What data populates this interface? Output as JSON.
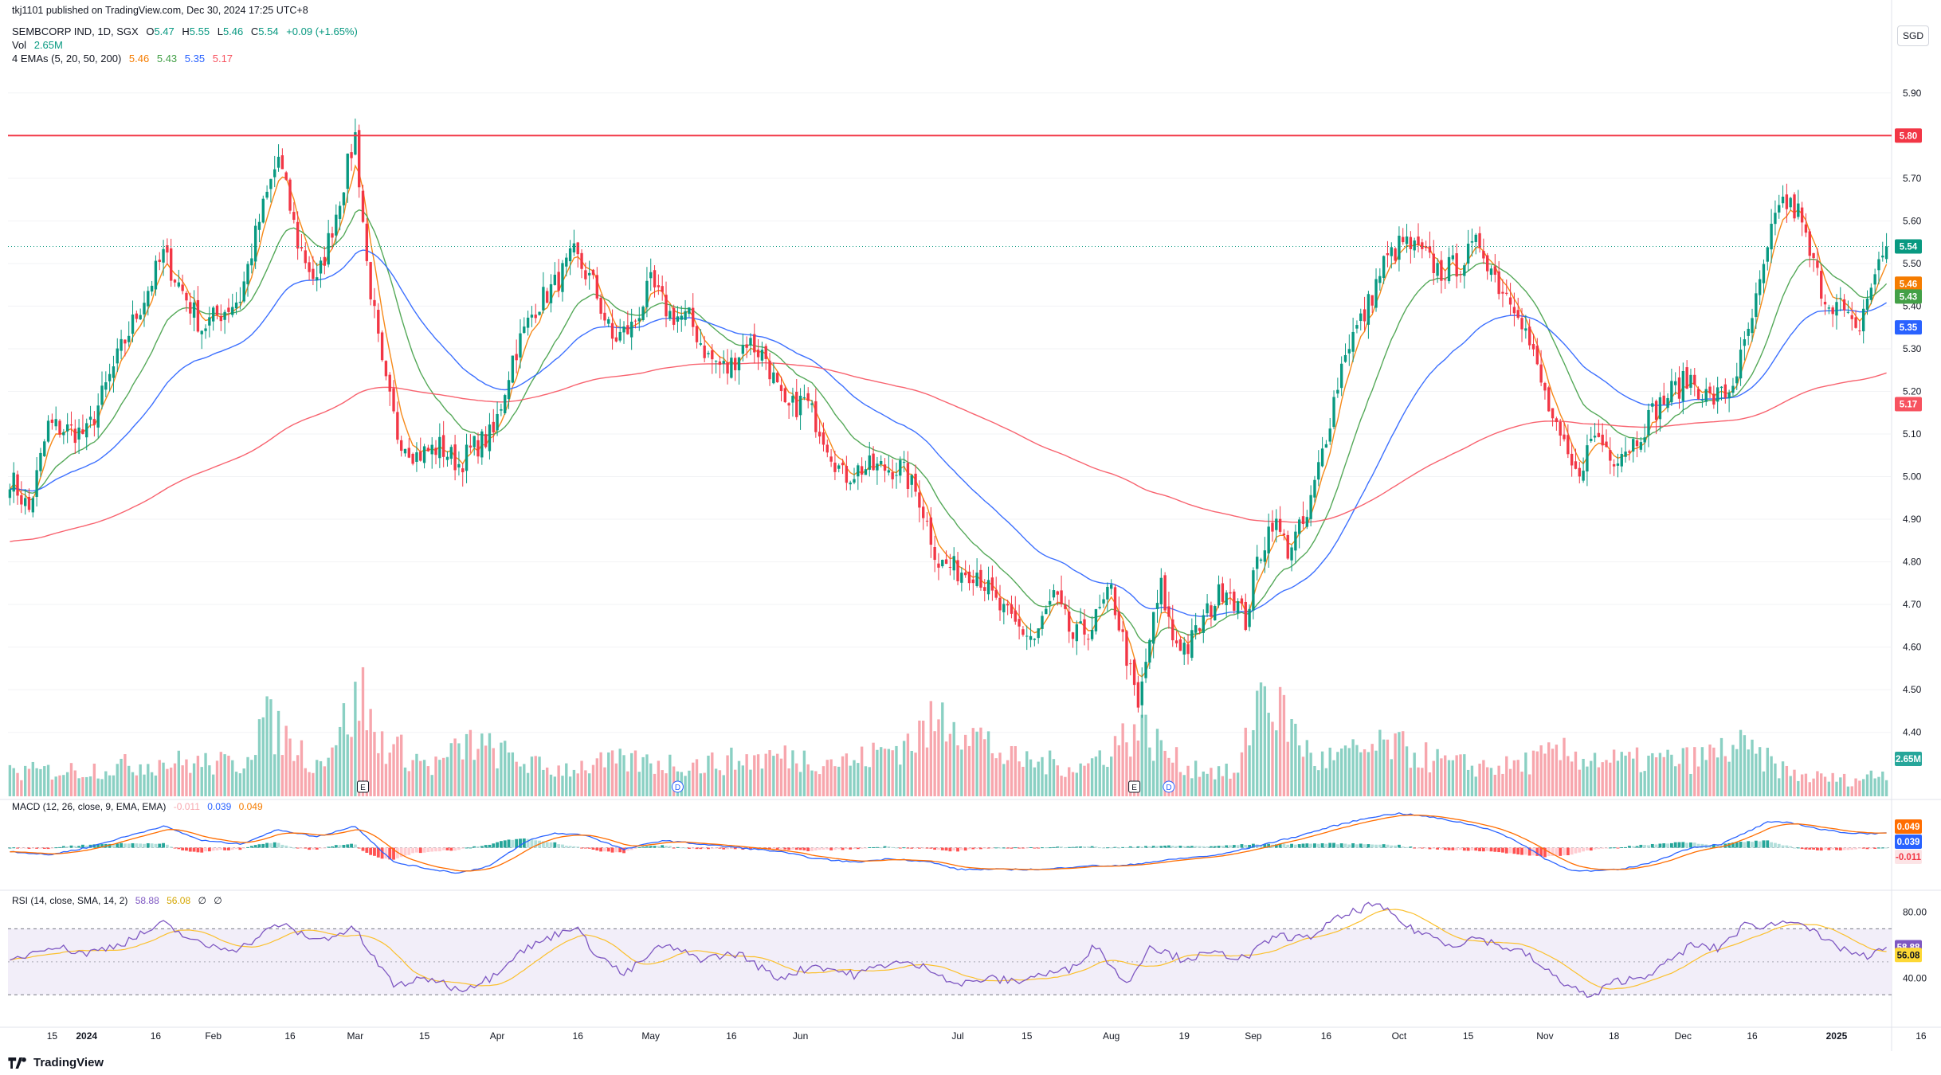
{
  "header": {
    "published": "tkj1101 published on TradingView.com, Dec 30, 2024 17:25 UTC+8",
    "symbol": "SEMBCORP IND, 1D, SGX",
    "o_label": "O",
    "o": "5.47",
    "h_label": "H",
    "h": "5.55",
    "l_label": "L",
    "l": "5.46",
    "c_label": "C",
    "c": "5.54",
    "change": "+0.09 (+1.65%)",
    "vol_label": "Vol",
    "vol": "2.65M",
    "ema_label": "4 EMAs (5, 20, 50, 200)",
    "ema5": "5.46",
    "ema20": "5.43",
    "ema50": "5.35",
    "ema200": "5.17",
    "macd_label": "MACD (12, 26, close, 9, EMA, EMA)",
    "macd_hist": "-0.011",
    "macd": "0.039",
    "macd_signal": "0.049",
    "rsi_label": "RSI (14, close, SMA, 14, 2)",
    "rsi": "58.88",
    "rsi_sma": "56.08",
    "rsi_extra1": "∅",
    "rsi_extra2": "∅"
  },
  "currency": "SGD",
  "footer": {
    "brand": "TradingView"
  },
  "colors": {
    "up": "#089981",
    "down": "#f23645",
    "ema5": "#f57c00",
    "ema20": "#43a047",
    "ema50": "#2962ff",
    "ema200": "#f7525f",
    "resistance": "#f23645",
    "rsi": "#7e57c2",
    "rsi_sma": "#fbc02d"
  },
  "chart_data": {
    "type": "candlestick",
    "price_axis": {
      "ylim": [
        4.25,
        5.95
      ],
      "ticks": [
        "5.90",
        "5.80",
        "5.70",
        "5.60",
        "5.50",
        "5.40",
        "5.30",
        "5.20",
        "5.10",
        "5.00",
        "4.90",
        "4.80",
        "4.70",
        "4.60",
        "4.50",
        "4.40"
      ]
    },
    "time_axis": {
      "labels": [
        "15",
        "2024",
        "16",
        "Feb",
        "16",
        "Mar",
        "15",
        "Apr",
        "16",
        "May",
        "16",
        "Jun",
        "Jul",
        "15",
        "Aug",
        "19",
        "Sep",
        "16",
        "Oct",
        "15",
        "Nov",
        "18",
        "Dec",
        "16",
        "2025",
        "16"
      ],
      "label_index": [
        11,
        20,
        38,
        53,
        73,
        90,
        108,
        127,
        148,
        167,
        188,
        206,
        247,
        265,
        287,
        306,
        324,
        343,
        362,
        380,
        400,
        418,
        436,
        454,
        476,
        498
      ]
    },
    "resistance_line": 5.8,
    "last_values": {
      "close": "5.54",
      "ema5": "5.46",
      "ema20": "5.43",
      "ema50": "5.35",
      "ema200": "5.17",
      "volume": "2.65M"
    },
    "macd_axis": {
      "ylim": [
        -0.1,
        0.12
      ],
      "labels": [
        "0.049",
        "0.039",
        "-0.011"
      ]
    },
    "rsi_axis": {
      "ylim": [
        20,
        90
      ],
      "ticks": [
        "80.00",
        "40.00"
      ],
      "last": [
        "58.88",
        "56.08"
      ],
      "overbought": 70,
      "oversold": 30,
      "mid": 50
    },
    "events": [
      {
        "type": "E",
        "index": 92
      },
      {
        "type": "D",
        "index": 174
      },
      {
        "type": "E",
        "index": 293
      },
      {
        "type": "D",
        "index": 302
      }
    ],
    "close_anchors": [
      [
        0,
        5.0
      ],
      [
        5,
        4.92
      ],
      [
        10,
        5.12
      ],
      [
        20,
        5.1
      ],
      [
        30,
        5.32
      ],
      [
        40,
        5.52
      ],
      [
        50,
        5.35
      ],
      [
        60,
        5.42
      ],
      [
        65,
        5.6
      ],
      [
        70,
        5.75
      ],
      [
        75,
        5.55
      ],
      [
        80,
        5.45
      ],
      [
        85,
        5.62
      ],
      [
        90,
        5.8
      ],
      [
        93,
        5.5
      ],
      [
        97,
        5.25
      ],
      [
        101,
        5.1
      ],
      [
        106,
        5.05
      ],
      [
        112,
        5.07
      ],
      [
        117,
        5.03
      ],
      [
        121,
        5.07
      ],
      [
        126,
        5.1
      ],
      [
        131,
        5.28
      ],
      [
        137,
        5.4
      ],
      [
        142,
        5.45
      ],
      [
        147,
        5.52
      ],
      [
        152,
        5.45
      ],
      [
        157,
        5.32
      ],
      [
        162,
        5.35
      ],
      [
        167,
        5.45
      ],
      [
        172,
        5.38
      ],
      [
        177,
        5.37
      ],
      [
        182,
        5.28
      ],
      [
        187,
        5.25
      ],
      [
        192,
        5.32
      ],
      [
        197,
        5.28
      ],
      [
        202,
        5.15
      ],
      [
        207,
        5.18
      ],
      [
        212,
        5.1
      ],
      [
        217,
        5.0
      ],
      [
        222,
        5.02
      ],
      [
        227,
        5.02
      ],
      [
        232,
        5.02
      ],
      [
        237,
        4.95
      ],
      [
        242,
        4.8
      ],
      [
        247,
        4.78
      ],
      [
        252,
        4.78
      ],
      [
        257,
        4.7
      ],
      [
        262,
        4.65
      ],
      [
        267,
        4.62
      ],
      [
        272,
        4.72
      ],
      [
        277,
        4.62
      ],
      [
        282,
        4.65
      ],
      [
        287,
        4.73
      ],
      [
        291,
        4.58
      ],
      [
        294,
        4.45
      ],
      [
        297,
        4.62
      ],
      [
        300,
        4.74
      ],
      [
        303,
        4.62
      ],
      [
        307,
        4.6
      ],
      [
        312,
        4.68
      ],
      [
        317,
        4.75
      ],
      [
        322,
        4.66
      ],
      [
        325,
        4.8
      ],
      [
        329,
        4.9
      ],
      [
        333,
        4.83
      ],
      [
        338,
        4.9
      ],
      [
        343,
        5.1
      ],
      [
        348,
        5.3
      ],
      [
        353,
        5.38
      ],
      [
        358,
        5.5
      ],
      [
        363,
        5.55
      ],
      [
        368,
        5.52
      ],
      [
        373,
        5.48
      ],
      [
        378,
        5.5
      ],
      [
        383,
        5.55
      ],
      [
        388,
        5.45
      ],
      [
        393,
        5.4
      ],
      [
        398,
        5.25
      ],
      [
        403,
        5.1
      ],
      [
        408,
        5.0
      ],
      [
        413,
        5.1
      ],
      [
        418,
        5.05
      ],
      [
        423,
        5.08
      ],
      [
        428,
        5.15
      ],
      [
        433,
        5.2
      ],
      [
        438,
        5.23
      ],
      [
        443,
        5.18
      ],
      [
        448,
        5.2
      ],
      [
        452,
        5.3
      ],
      [
        457,
        5.48
      ],
      [
        461,
        5.65
      ],
      [
        466,
        5.62
      ],
      [
        469,
        5.52
      ],
      [
        473,
        5.42
      ],
      [
        477,
        5.4
      ],
      [
        481,
        5.33
      ],
      [
        485,
        5.45
      ],
      [
        489,
        5.54
      ]
    ],
    "volume_anchors": [
      [
        0,
        0.9
      ],
      [
        20,
        1.0
      ],
      [
        40,
        1.3
      ],
      [
        60,
        1.2
      ],
      [
        66,
        2.9
      ],
      [
        80,
        1.2
      ],
      [
        92,
        3.8
      ],
      [
        95,
        2.2
      ],
      [
        110,
        1.1
      ],
      [
        120,
        2.0
      ],
      [
        140,
        1.0
      ],
      [
        160,
        1.3
      ],
      [
        180,
        1.2
      ],
      [
        200,
        1.5
      ],
      [
        220,
        1.3
      ],
      [
        235,
        2.1
      ],
      [
        245,
        3.1
      ],
      [
        260,
        1.4
      ],
      [
        280,
        1.1
      ],
      [
        294,
        2.6
      ],
      [
        305,
        1.2
      ],
      [
        320,
        0.8
      ],
      [
        326,
        4.2
      ],
      [
        340,
        1.3
      ],
      [
        360,
        1.9
      ],
      [
        375,
        1.2
      ],
      [
        390,
        1.1
      ],
      [
        404,
        1.6
      ],
      [
        420,
        1.3
      ],
      [
        440,
        1.4
      ],
      [
        450,
        1.9
      ],
      [
        465,
        0.8
      ],
      [
        480,
        0.6
      ],
      [
        489,
        0.9
      ]
    ],
    "rsi_anchors": [
      [
        0,
        50
      ],
      [
        10,
        60
      ],
      [
        20,
        55
      ],
      [
        30,
        62
      ],
      [
        40,
        73
      ],
      [
        50,
        60
      ],
      [
        60,
        58
      ],
      [
        70,
        73
      ],
      [
        80,
        63
      ],
      [
        90,
        70
      ],
      [
        93,
        58
      ],
      [
        100,
        36
      ],
      [
        110,
        40
      ],
      [
        117,
        33
      ],
      [
        125,
        40
      ],
      [
        132,
        55
      ],
      [
        140,
        64
      ],
      [
        147,
        72
      ],
      [
        152,
        57
      ],
      [
        160,
        42
      ],
      [
        170,
        60
      ],
      [
        180,
        52
      ],
      [
        190,
        55
      ],
      [
        200,
        40
      ],
      [
        210,
        48
      ],
      [
        220,
        42
      ],
      [
        230,
        50
      ],
      [
        240,
        46
      ],
      [
        247,
        36
      ],
      [
        255,
        40
      ],
      [
        262,
        38
      ],
      [
        268,
        42
      ],
      [
        276,
        45
      ],
      [
        283,
        60
      ],
      [
        291,
        36
      ],
      [
        297,
        60
      ],
      [
        305,
        52
      ],
      [
        315,
        55
      ],
      [
        322,
        52
      ],
      [
        330,
        66
      ],
      [
        338,
        64
      ],
      [
        345,
        75
      ],
      [
        350,
        80
      ],
      [
        355,
        85
      ],
      [
        360,
        79
      ],
      [
        365,
        70
      ],
      [
        370,
        66
      ],
      [
        376,
        60
      ],
      [
        382,
        65
      ],
      [
        388,
        60
      ],
      [
        395,
        55
      ],
      [
        400,
        45
      ],
      [
        406,
        36
      ],
      [
        412,
        28
      ],
      [
        418,
        38
      ],
      [
        424,
        40
      ],
      [
        430,
        46
      ],
      [
        438,
        60
      ],
      [
        445,
        58
      ],
      [
        452,
        72
      ],
      [
        458,
        72
      ],
      [
        466,
        76
      ],
      [
        473,
        62
      ],
      [
        480,
        56
      ],
      [
        484,
        52
      ],
      [
        489,
        59
      ]
    ],
    "macd_anchors": [
      [
        0,
        -0.01
      ],
      [
        10,
        -0.02
      ],
      [
        20,
        0.0
      ],
      [
        30,
        0.03
      ],
      [
        40,
        0.06
      ],
      [
        50,
        0.02
      ],
      [
        60,
        0.01
      ],
      [
        70,
        0.05
      ],
      [
        80,
        0.03
      ],
      [
        90,
        0.06
      ],
      [
        100,
        -0.04
      ],
      [
        110,
        -0.06
      ],
      [
        117,
        -0.07
      ],
      [
        125,
        -0.05
      ],
      [
        135,
        0.02
      ],
      [
        142,
        0.04
      ],
      [
        150,
        0.035
      ],
      [
        160,
        -0.005
      ],
      [
        170,
        0.02
      ],
      [
        180,
        0.01
      ],
      [
        190,
        0.0
      ],
      [
        200,
        -0.01
      ],
      [
        210,
        -0.03
      ],
      [
        220,
        -0.04
      ],
      [
        230,
        -0.03
      ],
      [
        240,
        -0.04
      ],
      [
        247,
        -0.06
      ],
      [
        255,
        -0.06
      ],
      [
        262,
        -0.06
      ],
      [
        270,
        -0.06
      ],
      [
        280,
        -0.05
      ],
      [
        290,
        -0.05
      ],
      [
        297,
        -0.04
      ],
      [
        305,
        -0.03
      ],
      [
        315,
        -0.02
      ],
      [
        325,
        0.005
      ],
      [
        335,
        0.03
      ],
      [
        345,
        0.06
      ],
      [
        355,
        0.085
      ],
      [
        362,
        0.095
      ],
      [
        370,
        0.085
      ],
      [
        378,
        0.07
      ],
      [
        386,
        0.05
      ],
      [
        394,
        0.01
      ],
      [
        400,
        -0.03
      ],
      [
        406,
        -0.06
      ],
      [
        412,
        -0.065
      ],
      [
        420,
        -0.06
      ],
      [
        428,
        -0.04
      ],
      [
        438,
        0.0
      ],
      [
        446,
        0.01
      ],
      [
        452,
        0.04
      ],
      [
        458,
        0.07
      ],
      [
        464,
        0.07
      ],
      [
        472,
        0.05
      ],
      [
        480,
        0.04
      ],
      [
        489,
        0.039
      ]
    ]
  }
}
